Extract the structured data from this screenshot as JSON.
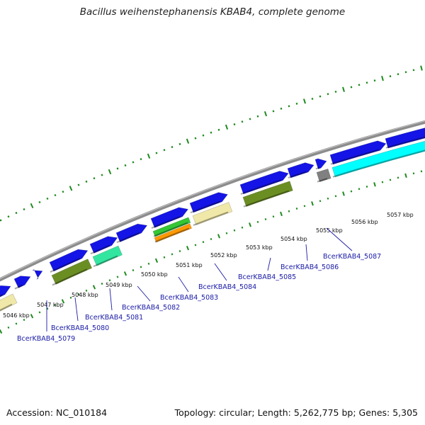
{
  "title": "Bacillus weihenstephanensis KBAB4, complete genome",
  "footer": {
    "accession": "Accession: NC_010184",
    "summary": "Topology: circular; Length: 5,262,775 bp; Genes: 5,305"
  },
  "colors": {
    "backbone": "#8c8c8c",
    "cds_forward": "#1414e6",
    "cds_reverse_other": "#1414e6",
    "tick": "#1f8a1f",
    "label": "#1a1aa6",
    "feature_yellow": "#f0e8a8",
    "feature_olive": "#6b8e23",
    "feature_mint": "#33e6a0",
    "feature_green": "#34c734",
    "feature_orange": "#ff9900",
    "feature_cyan": "#00ffff",
    "feature_gray": "#808080"
  },
  "ticks": [
    {
      "label": "5046 kbp"
    },
    {
      "label": "5047 kbp"
    },
    {
      "label": "5048 kbp"
    },
    {
      "label": "5049 kbp"
    },
    {
      "label": "5050 kbp"
    },
    {
      "label": "5051 kbp"
    },
    {
      "label": "5052 kbp"
    },
    {
      "label": "5053 kbp"
    },
    {
      "label": "5054 kbp"
    },
    {
      "label": "5055 kbp"
    },
    {
      "label": "5056 kbp"
    },
    {
      "label": "5057 kbp"
    }
  ],
  "genes": [
    {
      "label": "BcerKBAB4_5079"
    },
    {
      "label": "BcerKBAB4_5080"
    },
    {
      "label": "BcerKBAB4_5081"
    },
    {
      "label": "BcerKBAB4_5082"
    },
    {
      "label": "BcerKBAB4_5083"
    },
    {
      "label": "BcerKBAB4_5084"
    },
    {
      "label": "BcerKBAB4_5085"
    },
    {
      "label": "BcerKBAB4_5086"
    },
    {
      "label": "BcerKBAB4_5087"
    }
  ]
}
